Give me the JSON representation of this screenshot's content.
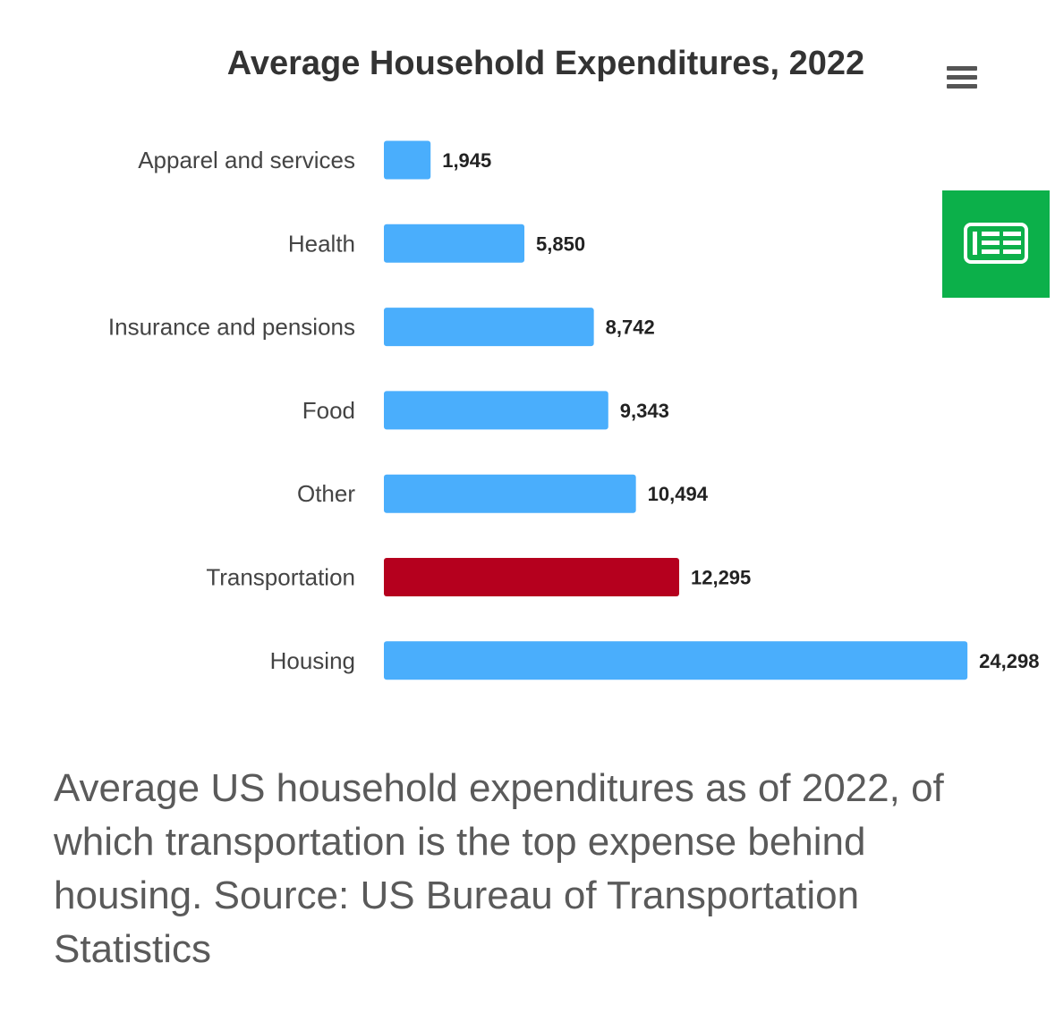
{
  "chart_data": {
    "type": "bar",
    "orientation": "horizontal",
    "title": "Average Household Expenditures, 2022",
    "categories": [
      "Apparel and services",
      "Health",
      "Insurance and pensions",
      "Food",
      "Other",
      "Transportation",
      "Housing"
    ],
    "values": [
      1945,
      5850,
      8742,
      9343,
      10494,
      12295,
      24298
    ],
    "data_labels": [
      "1,945",
      "5,850",
      "8,742",
      "9,343",
      "10,494",
      "12,295",
      "24,298"
    ],
    "bar_colors": [
      "#4aaefc",
      "#4aaefc",
      "#4aaefc",
      "#4aaefc",
      "#4aaefc",
      "#b5001e",
      "#4aaefc"
    ],
    "highlight_category": "Transportation",
    "xlim": [
      0,
      25000
    ],
    "xlabel": "",
    "ylabel": "",
    "grid": false,
    "legend": "none"
  },
  "caption": "Average US household expenditures as of 2022, of which transportation is the top expense behind housing. Source: US Bureau of Transportation Statistics",
  "icons": {
    "menu": "hamburger-menu-icon",
    "badge": "newspaper-icon"
  },
  "colors": {
    "default_bar": "#4aaefc",
    "highlight_bar": "#b5001e",
    "badge_background": "#0cb04a",
    "title_text": "#333333",
    "caption_text": "#5a5a5a"
  }
}
